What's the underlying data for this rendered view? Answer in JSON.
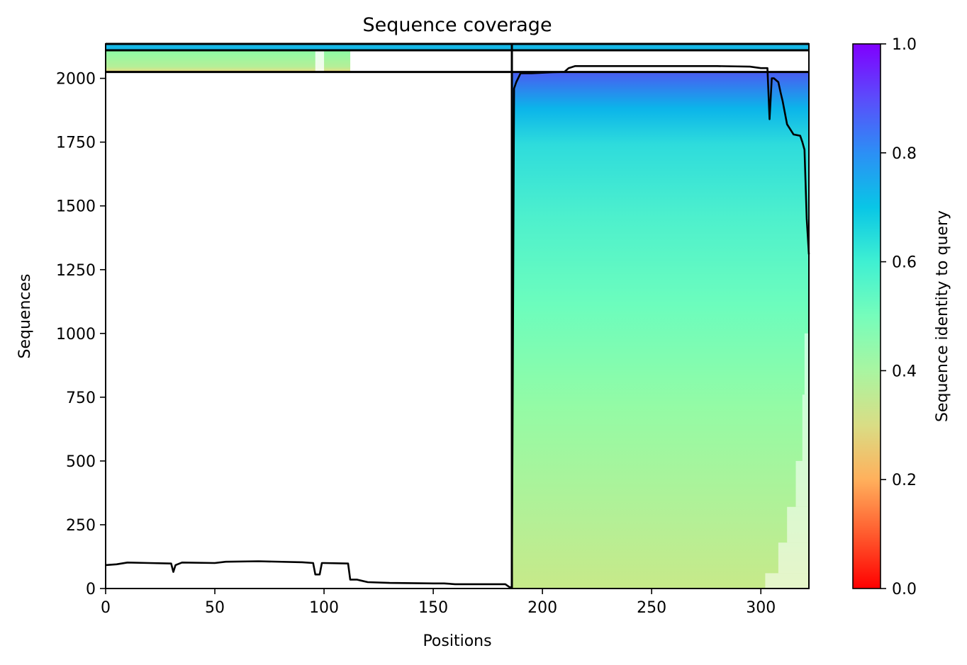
{
  "chart_data": {
    "type": "heatmap",
    "title": "Sequence coverage",
    "xlabel": "Positions",
    "ylabel": "Sequences",
    "xlim": [
      0,
      322
    ],
    "ylim": [
      0,
      2135
    ],
    "x_ticks": [
      0,
      50,
      100,
      150,
      200,
      250,
      300
    ],
    "y_ticks": [
      0,
      250,
      500,
      750,
      1000,
      1250,
      1500,
      1750,
      2000
    ],
    "colorbar": {
      "label": "Sequence identity to query",
      "colormap": "rainbow",
      "range": [
        0,
        1
      ],
      "ticks": [
        0.0,
        0.2,
        0.4,
        0.6,
        0.8,
        1.0
      ],
      "tick_labels": [
        "0.0",
        "0.2",
        "0.4",
        "0.6",
        "0.8",
        "1.0"
      ]
    },
    "boundaries": {
      "vertical_x": [
        186
      ],
      "horizontal_y": [
        2025,
        2110,
        2135
      ]
    },
    "blocks": [
      {
        "name": "segment-1",
        "x_range": [
          0,
          112
        ],
        "y_range": [
          2025,
          2110
        ],
        "identity_range": [
          0.25,
          0.55
        ]
      },
      {
        "name": "segment-2",
        "x_range": [
          186,
          322
        ],
        "y_range": [
          0,
          2025
        ],
        "identity_range": [
          0.4,
          0.85
        ]
      },
      {
        "name": "paired",
        "x_range": [
          0,
          322
        ],
        "y_range": [
          2110,
          2135
        ],
        "identity_range": [
          0.7,
          0.75
        ]
      }
    ],
    "coverage_line": {
      "color": "#000000",
      "x": [
        0,
        5,
        10,
        20,
        30,
        31,
        32,
        35,
        50,
        55,
        70,
        90,
        95,
        96,
        98,
        99,
        100,
        111,
        112,
        115,
        120,
        130,
        150,
        155,
        160,
        175,
        183,
        185,
        186,
        187,
        188,
        190,
        195,
        200,
        205,
        210,
        212,
        215,
        225,
        250,
        260,
        280,
        295,
        300,
        303,
        304,
        305,
        306,
        308,
        309,
        310,
        312,
        315,
        318,
        319,
        320,
        321,
        322
      ],
      "y": [
        92,
        95,
        102,
        100,
        98,
        65,
        92,
        102,
        100,
        105,
        107,
        103,
        100,
        55,
        55,
        100,
        100,
        98,
        35,
        35,
        25,
        22,
        20,
        20,
        17,
        17,
        17,
        5,
        5,
        1960,
        1985,
        2020,
        2020,
        2022,
        2024,
        2025,
        2040,
        2048,
        2048,
        2048,
        2048,
        2048,
        2046,
        2040,
        2040,
        1840,
        2000,
        2000,
        1985,
        1945,
        1910,
        1820,
        1780,
        1775,
        1750,
        1720,
        1450,
        1310
      ]
    }
  }
}
